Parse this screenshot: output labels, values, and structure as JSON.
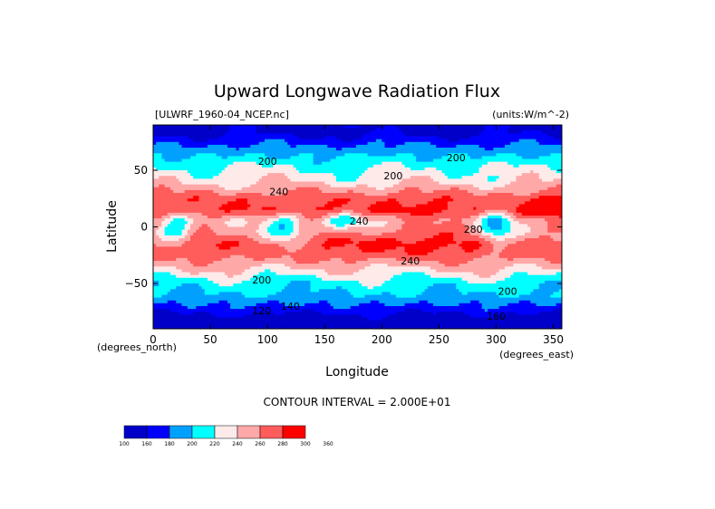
{
  "chart_data": {
    "type": "heatmap",
    "title": "Upward Longwave Radiation Flux",
    "subtitle_left": "[ULWRF_1960-04_NCEP.nc]",
    "units": "(units:W/m^-2)",
    "xlabel": "Longitude",
    "ylabel": "Latitude",
    "x_units": "(degrees_east)",
    "y_units": "(degrees_north)",
    "xlim": [
      0,
      357.5
    ],
    "ylim": [
      -90,
      90
    ],
    "x_ticks": [
      0,
      50,
      100,
      150,
      200,
      250,
      300,
      350
    ],
    "y_ticks": [
      50,
      0,
      -50
    ],
    "contour_interval_text": "CONTOUR INTERVAL = 2.000E+01",
    "contour_labels": [
      "200",
      "200",
      "200",
      "240",
      "240",
      "240",
      "280",
      "200",
      "200",
      "120",
      "140",
      "160"
    ],
    "colorbar": {
      "levels": [
        "100",
        "160",
        "180",
        "200",
        "220",
        "240",
        "260",
        "280",
        "300",
        "360"
      ],
      "colors": [
        "#0000c8",
        "#0000ff",
        "#00a0ff",
        "#00ffff",
        "#ffeaea",
        "#ffa8a8",
        "#ff5c5c",
        "#ff0000"
      ]
    },
    "latitude_band_values": [
      {
        "lat": 85,
        "value": 150
      },
      {
        "lat": 70,
        "value": 185
      },
      {
        "lat": 55,
        "value": 215
      },
      {
        "lat": 40,
        "value": 235
      },
      {
        "lat": 25,
        "value": 275
      },
      {
        "lat": 15,
        "value": 285
      },
      {
        "lat": 5,
        "value": 250
      },
      {
        "lat": -5,
        "value": 255
      },
      {
        "lat": -15,
        "value": 275
      },
      {
        "lat": -25,
        "value": 270
      },
      {
        "lat": -35,
        "value": 245
      },
      {
        "lat": -50,
        "value": 210
      },
      {
        "lat": -62,
        "value": 195
      },
      {
        "lat": -75,
        "value": 165
      },
      {
        "lat": -85,
        "value": 135
      }
    ]
  }
}
